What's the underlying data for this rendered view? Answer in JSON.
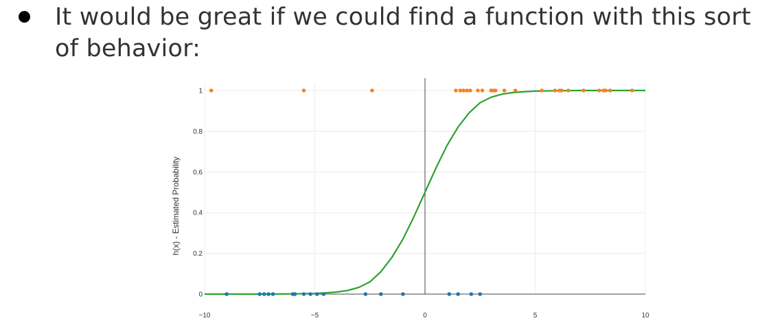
{
  "slide": {
    "bullet_text": "It would be great if we could find a function with this sort of behavior:"
  },
  "colors": {
    "class1": "#f58220",
    "class0": "#1f77b4",
    "curve": "#2ca02c",
    "grid": "#ececec",
    "axis": "#444444",
    "text": "#333333"
  },
  "chart_data": {
    "type": "scatter",
    "title": "",
    "xlabel": "",
    "ylabel": "h(x) - Estimated Probability",
    "xlim": [
      -10,
      10
    ],
    "ylim": [
      0,
      1
    ],
    "x_ticks": [
      -10,
      -5,
      0,
      5,
      10
    ],
    "y_ticks": [
      0,
      0.2,
      0.4,
      0.6,
      0.8,
      1
    ],
    "y_tick_labels": [
      "0",
      "0.2",
      "0.4",
      "0.6",
      "0.8",
      "1"
    ],
    "grid": true,
    "series": [
      {
        "kind": "points",
        "color_key": "class1",
        "x": [
          -9.7,
          -5.5,
          -2.4,
          1.4,
          1.6,
          1.75,
          1.9,
          2.05,
          2.4,
          2.6,
          3.0,
          3.1,
          3.2,
          3.6,
          4.1,
          5.3,
          5.9,
          6.1,
          6.2,
          6.5,
          7.2,
          7.9,
          8.1,
          8.2,
          8.4,
          9.4
        ],
        "y": [
          1,
          1,
          1,
          1,
          1,
          1,
          1,
          1,
          1,
          1,
          1,
          1,
          1,
          1,
          1,
          1,
          1,
          1,
          1,
          1,
          1,
          1,
          1,
          1,
          1,
          1
        ]
      },
      {
        "kind": "points",
        "color_key": "class0",
        "x": [
          -9.0,
          -7.5,
          -7.3,
          -7.1,
          -6.9,
          -6.0,
          -5.9,
          -5.5,
          -5.2,
          -4.9,
          -4.6,
          -2.7,
          -2.0,
          -1.0,
          1.1,
          1.5,
          2.1,
          2.5
        ],
        "y": [
          0,
          0,
          0,
          0,
          0,
          0,
          0,
          0,
          0,
          0,
          0,
          0,
          0,
          0,
          0,
          0,
          0,
          0
        ]
      },
      {
        "kind": "line",
        "color_key": "curve",
        "x": [
          -10,
          -9,
          -8,
          -7,
          -6,
          -5,
          -4.5,
          -4,
          -3.5,
          -3,
          -2.5,
          -2,
          -1.5,
          -1,
          -0.5,
          0,
          0.5,
          1,
          1.5,
          2,
          2.5,
          3,
          3.5,
          4,
          4.5,
          5,
          6,
          7,
          8,
          9,
          10
        ],
        "y": [
          0.0,
          0.0,
          0.0,
          0.0,
          0.001,
          0.003,
          0.006,
          0.01,
          0.018,
          0.033,
          0.06,
          0.11,
          0.18,
          0.27,
          0.38,
          0.5,
          0.62,
          0.73,
          0.82,
          0.89,
          0.94,
          0.967,
          0.982,
          0.99,
          0.994,
          0.997,
          0.999,
          1.0,
          1.0,
          1.0,
          1.0
        ]
      }
    ]
  }
}
